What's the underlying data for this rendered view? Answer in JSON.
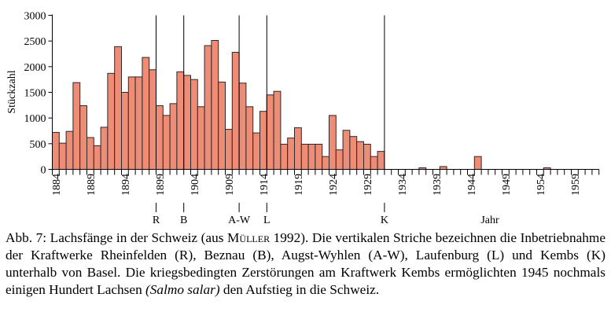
{
  "chart_data": {
    "type": "bar",
    "title": "",
    "xlabel": "Jahr",
    "ylabel": "Stückzahl",
    "ylim": [
      0,
      3000
    ],
    "yticks": [
      0,
      500,
      1000,
      1500,
      2000,
      2500,
      3000
    ],
    "xlim": [
      1884,
      1962
    ],
    "xtick_labels": [
      "1884",
      "1889",
      "1894",
      "1899",
      "1904",
      "1909",
      "1914",
      "1919",
      "1924",
      "1929",
      "1934",
      "1939",
      "1944",
      "1949",
      "1954",
      "1959"
    ],
    "bar_color": "#ef8c76",
    "series": [
      {
        "name": "Lachsfänge",
        "years": [
          1884,
          1885,
          1886,
          1887,
          1888,
          1889,
          1890,
          1891,
          1892,
          1893,
          1894,
          1895,
          1896,
          1897,
          1898,
          1899,
          1900,
          1901,
          1902,
          1903,
          1904,
          1905,
          1906,
          1907,
          1908,
          1909,
          1910,
          1911,
          1912,
          1913,
          1914,
          1915,
          1916,
          1917,
          1918,
          1919,
          1920,
          1921,
          1922,
          1923,
          1924,
          1925,
          1926,
          1927,
          1928,
          1929,
          1930,
          1931,
          1932,
          1933,
          1934,
          1935,
          1936,
          1937,
          1938,
          1939,
          1940,
          1941,
          1942,
          1943,
          1944,
          1945,
          1946,
          1947,
          1948,
          1949,
          1950,
          1951,
          1952,
          1953,
          1954,
          1955,
          1956,
          1957,
          1958,
          1959,
          1960,
          1961,
          1962
        ],
        "values": [
          720,
          510,
          740,
          1690,
          1240,
          620,
          460,
          820,
          1870,
          2390,
          1500,
          1800,
          1800,
          2180,
          1940,
          1240,
          1050,
          1280,
          1900,
          1830,
          1750,
          1220,
          2410,
          2510,
          1700,
          780,
          2280,
          1680,
          1220,
          710,
          1130,
          1450,
          1520,
          490,
          610,
          810,
          490,
          490,
          490,
          250,
          1050,
          380,
          760,
          640,
          540,
          490,
          250,
          350,
          0,
          0,
          0,
          0,
          0,
          30,
          0,
          0,
          55,
          0,
          0,
          0,
          0,
          250,
          0,
          0,
          0,
          0,
          0,
          0,
          0,
          0,
          0,
          30,
          0,
          0,
          0,
          0,
          0,
          0,
          0
        ]
      }
    ],
    "annotations": [
      {
        "label": "R",
        "after_year": 1898
      },
      {
        "label": "B",
        "after_year": 1902
      },
      {
        "label": "A-W",
        "after_year": 1910
      },
      {
        "label": "L",
        "after_year": 1914
      },
      {
        "label": "K",
        "after_year": 1931
      }
    ]
  },
  "caption": {
    "prefix": "Abb. 7: Lachsfänge in der Schweiz (aus ",
    "author": "Müller",
    "part2": " 1992). Die vertikalen Striche bezeichnen die Inbetriebnahme der Kraftwerke Rheinfelden (R), Beznau (B), Augst-Wyhlen (A-W), Laufenburg (L) und Kembs (K) unterhalb von Basel. Die kriegsbedingten Zerstörungen am Kraftwerk Kembs ermöglichten 1945 nochmals einigen Hundert Lachsen ",
    "species": "(Salmo salar)",
    "suffix": " den Aufstieg in die Schweiz."
  }
}
